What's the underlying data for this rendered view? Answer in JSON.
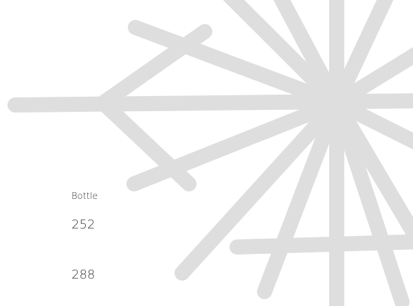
{
  "label": "Bottle",
  "values": [
    252,
    288
  ]
}
